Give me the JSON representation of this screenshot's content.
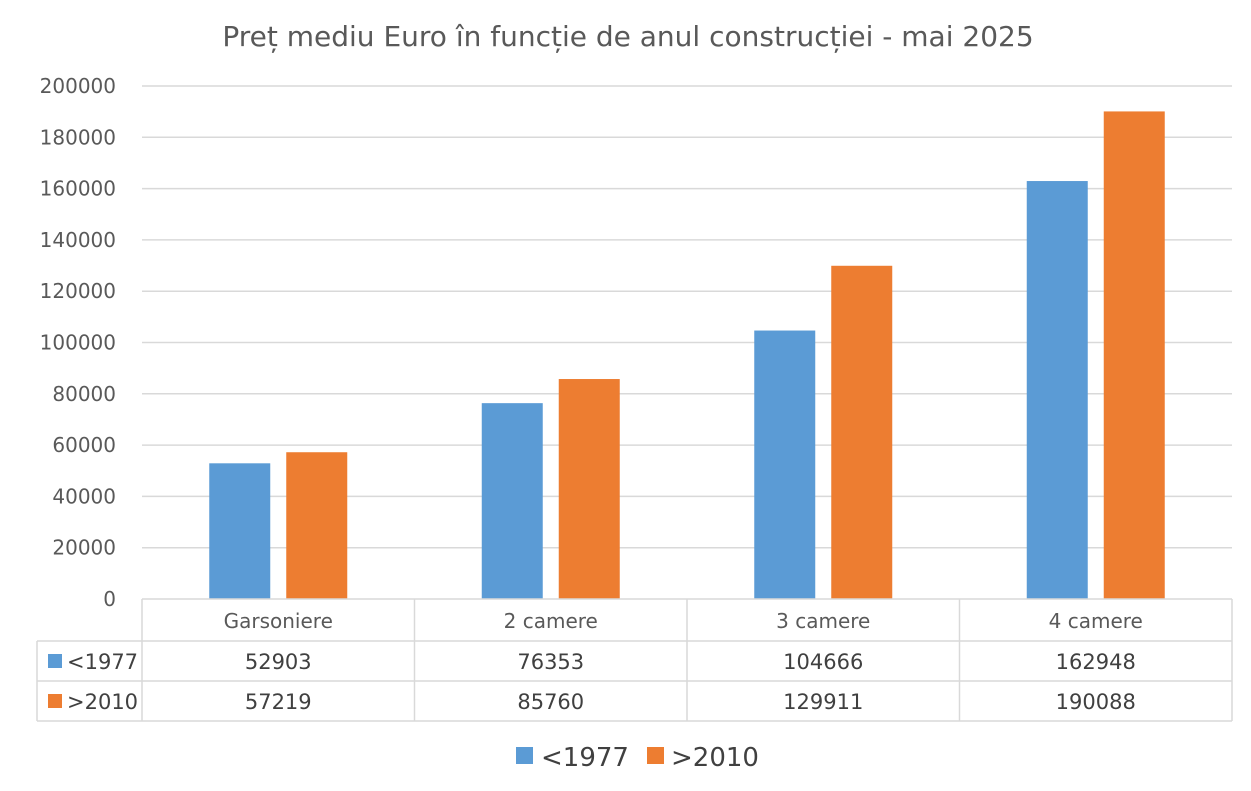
{
  "chart_data": {
    "type": "bar",
    "title": "Preț mediu Euro în funcție de anul construcției - mai 2025",
    "categories": [
      "Garsoniere",
      "2 camere",
      "3 camere",
      "4 camere"
    ],
    "series": [
      {
        "name": "<1977",
        "color": "#5B9BD5",
        "values": [
          52903,
          76353,
          104666,
          162948
        ]
      },
      {
        "name": ">2010",
        "color": "#ED7D31",
        "values": [
          57219,
          85760,
          129911,
          190088
        ]
      }
    ],
    "ylim": [
      0,
      200000
    ],
    "yticks": [
      0,
      20000,
      40000,
      60000,
      80000,
      100000,
      120000,
      140000,
      160000,
      180000,
      200000
    ],
    "grid": true,
    "data_table": true,
    "legend_position": "bottom"
  }
}
